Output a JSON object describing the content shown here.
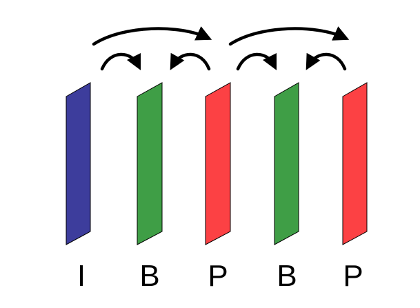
{
  "diagram": {
    "frames": [
      {
        "type": "I",
        "label": "I",
        "color": "#3d3d9c"
      },
      {
        "type": "B",
        "label": "B",
        "color": "#3f9e46"
      },
      {
        "type": "P",
        "label": "P",
        "color": "#fc4144"
      },
      {
        "type": "B",
        "label": "B",
        "color": "#3f9e46"
      },
      {
        "type": "P",
        "label": "P",
        "color": "#fc4144"
      }
    ],
    "references": [
      {
        "from": 0,
        "to": 2,
        "kind": "forward-prediction"
      },
      {
        "from": 2,
        "to": 4,
        "kind": "forward-prediction"
      },
      {
        "from": 0,
        "to": 1,
        "kind": "bidirectional-prediction"
      },
      {
        "from": 2,
        "to": 1,
        "kind": "bidirectional-prediction"
      },
      {
        "from": 2,
        "to": 3,
        "kind": "bidirectional-prediction"
      },
      {
        "from": 4,
        "to": 3,
        "kind": "bidirectional-prediction"
      }
    ],
    "stroke_color": "#000000"
  }
}
